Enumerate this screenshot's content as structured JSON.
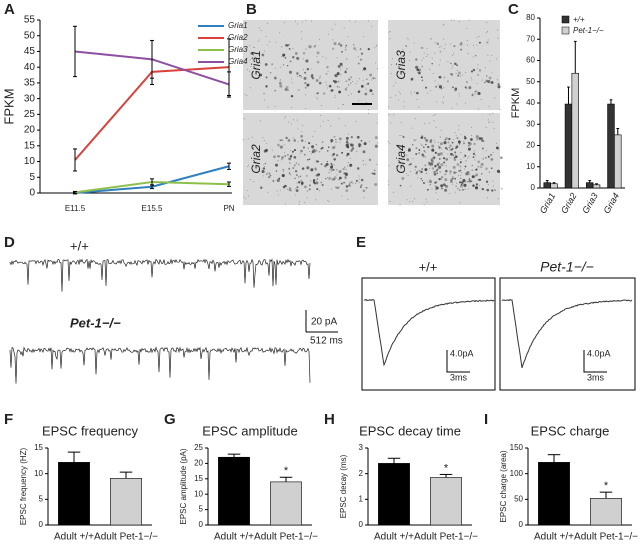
{
  "panel_labels": [
    "A",
    "B",
    "C",
    "D",
    "E",
    "F",
    "G",
    "H",
    "I"
  ],
  "chart_data": [
    {
      "type": "line",
      "ylabel": "FPKM",
      "categories": [
        "E11.5",
        "E15.5",
        "PN"
      ],
      "ylim": [
        0,
        55
      ],
      "yticks": [
        0,
        5,
        10,
        15,
        20,
        25,
        30,
        35,
        40,
        45,
        50,
        55
      ],
      "series": [
        {
          "name": "Gria1",
          "color": "#2f7fc1",
          "values": [
            0,
            2,
            8.5
          ],
          "errors": [
            0.3,
            0.6,
            1
          ]
        },
        {
          "name": "Gria2",
          "color": "#d9423a",
          "values": [
            10.5,
            38.5,
            40
          ],
          "errors": [
            3.5,
            4,
            9
          ]
        },
        {
          "name": "Gria3",
          "color": "#8cc04b",
          "values": [
            0.2,
            3.5,
            2.8
          ],
          "errors": [
            0.3,
            1,
            0.7
          ]
        },
        {
          "name": "Gria4",
          "color": "#8e4fa0",
          "values": [
            45,
            42.5,
            34.5
          ],
          "errors": [
            8,
            6,
            4
          ]
        }
      ]
    },
    {
      "type": "bar",
      "ylabel": "FPKM",
      "categories": [
        "Gria1",
        "Gria2",
        "Gria3",
        "Gria4"
      ],
      "ylim": [
        0,
        80
      ],
      "yticks": [
        0,
        10,
        20,
        30,
        40,
        50,
        60,
        70,
        80
      ],
      "series": [
        {
          "name": "+/+",
          "color": "#333333",
          "values": [
            2.5,
            39.5,
            2.5,
            39.5
          ],
          "errors": [
            1,
            8,
            1,
            2
          ]
        },
        {
          "name": "Pet-1−/−",
          "color": "#d0d0d0",
          "values": [
            2,
            54,
            1.5,
            25
          ],
          "errors": [
            0.5,
            15,
            0.5,
            3
          ]
        }
      ]
    },
    {
      "type": "bar",
      "title": "EPSC frequency",
      "ylabel": "EPSC frequency (HZ)",
      "categories": [
        "Adult +/+",
        "Adult Pet-1−/−"
      ],
      "colors": [
        "#000000",
        "#d0d0d0"
      ],
      "values": [
        12.2,
        9.1
      ],
      "errors": [
        2,
        1.2
      ],
      "ylim": [
        0,
        15
      ],
      "yticks": [
        0,
        5,
        10,
        15
      ]
    },
    {
      "type": "bar",
      "title": "EPSC amplitude",
      "ylabel": "EPSC amplitude (pA)",
      "categories": [
        "Adult +/+",
        "Adult Pet-1−/−"
      ],
      "colors": [
        "#000000",
        "#d0d0d0"
      ],
      "values": [
        22,
        14
      ],
      "errors": [
        1,
        1.5
      ],
      "annotation": "*",
      "ylim": [
        0,
        25
      ],
      "yticks": [
        0,
        5,
        10,
        15,
        20,
        25
      ]
    },
    {
      "type": "bar",
      "title": "EPSC decay time",
      "ylabel": "EPSC decay (ms)",
      "categories": [
        "Adult +/+",
        "Adult Pet-1−/−"
      ],
      "colors": [
        "#000000",
        "#d0d0d0"
      ],
      "values": [
        2.4,
        1.85
      ],
      "errors": [
        0.2,
        0.12
      ],
      "annotation": "*",
      "ylim": [
        0,
        3
      ],
      "yticks": [
        0,
        1,
        2,
        3
      ]
    },
    {
      "type": "bar",
      "title": "EPSC charge",
      "ylabel": "EPSC charge (area)",
      "categories": [
        "Adult +/+",
        "Adult Pet-1−/−"
      ],
      "colors": [
        "#000000",
        "#d0d0d0"
      ],
      "values": [
        122,
        52
      ],
      "errors": [
        15,
        12
      ],
      "annotation": "*",
      "ylim": [
        0,
        150
      ],
      "yticks": [
        0,
        50,
        100,
        150
      ]
    }
  ],
  "micrographs": {
    "labels": [
      "Gria1",
      "Gria3",
      "Gria2",
      "Gria4"
    ]
  },
  "traces": {
    "genotypes": [
      "+/+",
      "Pet-1−/−"
    ],
    "scale_D": [
      "20 pA",
      "512 ms"
    ],
    "scale_E": [
      "4.0pA",
      "3ms"
    ]
  }
}
